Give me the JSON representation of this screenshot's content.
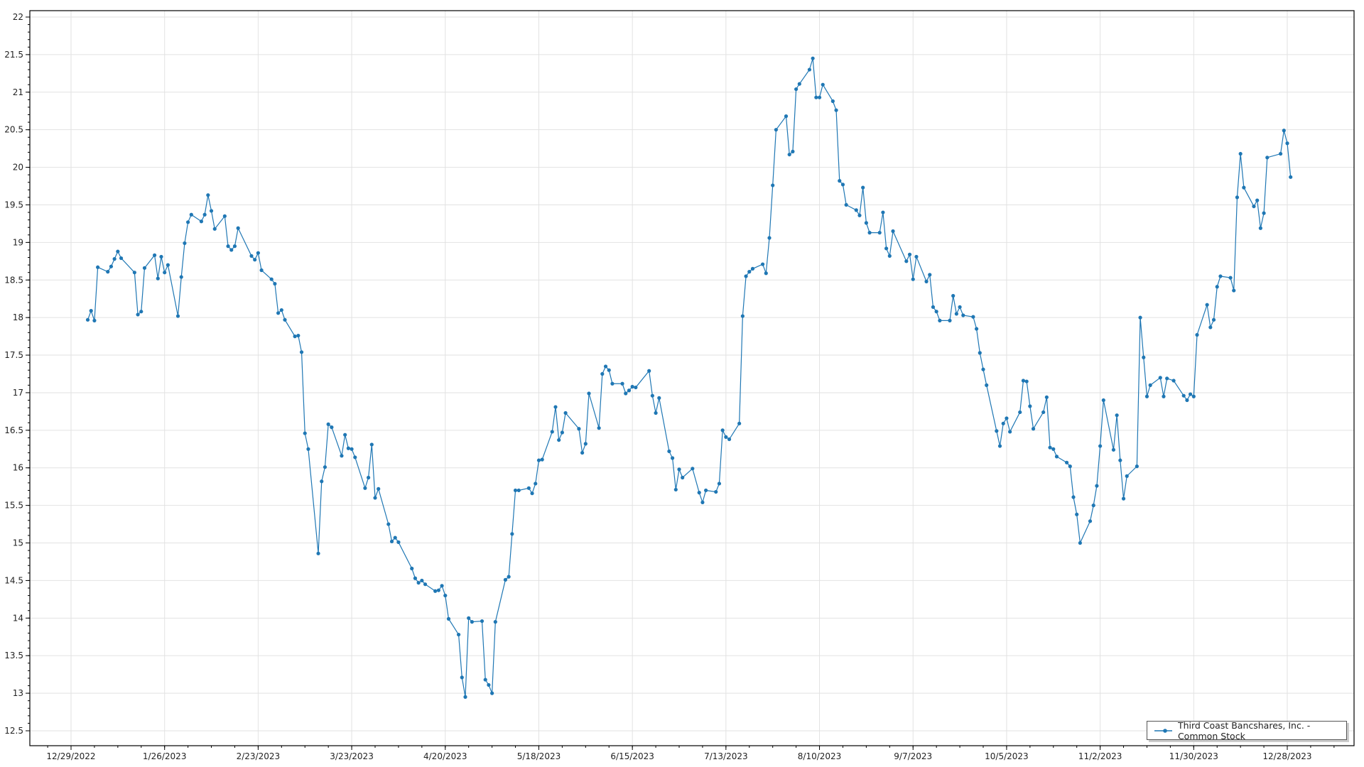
{
  "chart_data": {
    "type": "line",
    "title": "",
    "xlabel": "",
    "ylabel": "",
    "ylim": [
      12.5,
      22
    ],
    "yticks": [
      "12.5",
      "13",
      "13.5",
      "14",
      "14.5",
      "15",
      "15.5",
      "16",
      "16.5",
      "17",
      "17.5",
      "18",
      "18.5",
      "19",
      "19.5",
      "20",
      "20.5",
      "21",
      "21.5",
      "22"
    ],
    "xticks": [
      "12/29/2022",
      "1/26/2023",
      "2/23/2023",
      "3/23/2023",
      "4/20/2023",
      "5/18/2023",
      "6/15/2023",
      "7/13/2023",
      "8/10/2023",
      "9/7/2023",
      "10/5/2023",
      "11/2/2023",
      "11/30/2023",
      "12/28/2023"
    ],
    "grid": true,
    "legend_position": "bottom-right",
    "color": "#1f77b4",
    "series": [
      {
        "name": "Third Coast Bancshares, Inc. - Common Stock",
        "x": [
          "2023-01-03",
          "2023-01-04",
          "2023-01-05",
          "2023-01-06",
          "2023-01-09",
          "2023-01-10",
          "2023-01-11",
          "2023-01-12",
          "2023-01-13",
          "2023-01-17",
          "2023-01-18",
          "2023-01-19",
          "2023-01-20",
          "2023-01-23",
          "2023-01-24",
          "2023-01-25",
          "2023-01-26",
          "2023-01-27",
          "2023-01-30",
          "2023-01-31",
          "2023-02-01",
          "2023-02-02",
          "2023-02-03",
          "2023-02-06",
          "2023-02-07",
          "2023-02-08",
          "2023-02-09",
          "2023-02-10",
          "2023-02-13",
          "2023-02-14",
          "2023-02-15",
          "2023-02-16",
          "2023-02-17",
          "2023-02-21",
          "2023-02-22",
          "2023-02-23",
          "2023-02-24",
          "2023-02-27",
          "2023-02-28",
          "2023-03-01",
          "2023-03-02",
          "2023-03-03",
          "2023-03-06",
          "2023-03-07",
          "2023-03-08",
          "2023-03-09",
          "2023-03-10",
          "2023-03-13",
          "2023-03-14",
          "2023-03-15",
          "2023-03-16",
          "2023-03-17",
          "2023-03-20",
          "2023-03-21",
          "2023-03-22",
          "2023-03-23",
          "2023-03-24",
          "2023-03-27",
          "2023-03-28",
          "2023-03-29",
          "2023-03-30",
          "2023-03-31",
          "2023-04-03",
          "2023-04-04",
          "2023-04-05",
          "2023-04-06",
          "2023-04-10",
          "2023-04-11",
          "2023-04-12",
          "2023-04-13",
          "2023-04-14",
          "2023-04-17",
          "2023-04-18",
          "2023-04-19",
          "2023-04-20",
          "2023-04-21",
          "2023-04-24",
          "2023-04-25",
          "2023-04-26",
          "2023-04-27",
          "2023-04-28",
          "2023-05-01",
          "2023-05-02",
          "2023-05-03",
          "2023-05-04",
          "2023-05-05",
          "2023-05-08",
          "2023-05-09",
          "2023-05-10",
          "2023-05-11",
          "2023-05-12",
          "2023-05-15",
          "2023-05-16",
          "2023-05-17",
          "2023-05-18",
          "2023-05-19",
          "2023-05-22",
          "2023-05-23",
          "2023-05-24",
          "2023-05-25",
          "2023-05-26",
          "2023-05-30",
          "2023-05-31",
          "2023-06-01",
          "2023-06-02",
          "2023-06-05",
          "2023-06-06",
          "2023-06-07",
          "2023-06-08",
          "2023-06-09",
          "2023-06-12",
          "2023-06-13",
          "2023-06-14",
          "2023-06-15",
          "2023-06-16",
          "2023-06-20",
          "2023-06-21",
          "2023-06-22",
          "2023-06-23",
          "2023-06-26",
          "2023-06-27",
          "2023-06-28",
          "2023-06-29",
          "2023-06-30",
          "2023-07-03",
          "2023-07-05",
          "2023-07-06",
          "2023-07-07",
          "2023-07-10",
          "2023-07-11",
          "2023-07-12",
          "2023-07-13",
          "2023-07-14",
          "2023-07-17",
          "2023-07-18",
          "2023-07-19",
          "2023-07-20",
          "2023-07-21",
          "2023-07-24",
          "2023-07-25",
          "2023-07-26",
          "2023-07-27",
          "2023-07-28",
          "2023-07-31",
          "2023-08-01",
          "2023-08-02",
          "2023-08-03",
          "2023-08-04",
          "2023-08-07",
          "2023-08-08",
          "2023-08-09",
          "2023-08-10",
          "2023-08-11",
          "2023-08-14",
          "2023-08-15",
          "2023-08-16",
          "2023-08-17",
          "2023-08-18",
          "2023-08-21",
          "2023-08-22",
          "2023-08-23",
          "2023-08-24",
          "2023-08-25",
          "2023-08-28",
          "2023-08-29",
          "2023-08-30",
          "2023-08-31",
          "2023-09-01",
          "2023-09-05",
          "2023-09-06",
          "2023-09-07",
          "2023-09-08",
          "2023-09-11",
          "2023-09-12",
          "2023-09-13",
          "2023-09-14",
          "2023-09-15",
          "2023-09-18",
          "2023-09-19",
          "2023-09-20",
          "2023-09-21",
          "2023-09-22",
          "2023-09-25",
          "2023-09-26",
          "2023-09-27",
          "2023-09-28",
          "2023-09-29",
          "2023-10-02",
          "2023-10-03",
          "2023-10-04",
          "2023-10-05",
          "2023-10-06",
          "2023-10-09",
          "2023-10-10",
          "2023-10-11",
          "2023-10-12",
          "2023-10-13",
          "2023-10-16",
          "2023-10-17",
          "2023-10-18",
          "2023-10-19",
          "2023-10-20",
          "2023-10-23",
          "2023-10-24",
          "2023-10-25",
          "2023-10-26",
          "2023-10-27",
          "2023-10-30",
          "2023-10-31",
          "2023-11-01",
          "2023-11-02",
          "2023-11-03",
          "2023-11-06",
          "2023-11-07",
          "2023-11-08",
          "2023-11-09",
          "2023-11-10",
          "2023-11-13",
          "2023-11-14",
          "2023-11-15",
          "2023-11-16",
          "2023-11-17",
          "2023-11-20",
          "2023-11-21",
          "2023-11-22",
          "2023-11-24",
          "2023-11-27",
          "2023-11-28",
          "2023-11-29",
          "2023-11-30",
          "2023-12-01",
          "2023-12-04",
          "2023-12-05",
          "2023-12-06",
          "2023-12-07",
          "2023-12-08",
          "2023-12-11",
          "2023-12-12",
          "2023-12-13",
          "2023-12-14",
          "2023-12-15",
          "2023-12-18",
          "2023-12-19",
          "2023-12-20",
          "2023-12-21",
          "2023-12-22",
          "2023-12-26",
          "2023-12-27",
          "2023-12-28",
          "2023-12-29"
        ],
        "y": [
          17.97,
          18.09,
          17.96,
          18.67,
          18.61,
          18.68,
          18.78,
          18.88,
          18.79,
          18.6,
          18.04,
          18.08,
          18.66,
          18.83,
          18.52,
          18.81,
          18.6,
          18.7,
          18.02,
          18.54,
          18.99,
          19.27,
          19.37,
          19.28,
          19.37,
          19.63,
          19.42,
          19.18,
          19.35,
          18.95,
          18.9,
          18.95,
          19.19,
          18.82,
          18.77,
          18.86,
          18.63,
          18.51,
          18.45,
          18.06,
          18.1,
          17.97,
          17.75,
          17.76,
          17.54,
          16.46,
          16.25,
          14.86,
          15.82,
          16.01,
          16.58,
          16.54,
          16.16,
          16.44,
          16.26,
          16.25,
          16.14,
          15.73,
          15.87,
          16.31,
          15.6,
          15.72,
          15.25,
          15.02,
          15.07,
          15.01,
          14.66,
          14.53,
          14.47,
          14.5,
          14.45,
          14.36,
          14.37,
          14.43,
          14.3,
          13.99,
          13.78,
          13.21,
          12.95,
          14.0,
          13.95,
          13.96,
          13.18,
          13.11,
          13.0,
          13.95,
          14.51,
          14.55,
          15.12,
          15.7,
          15.7,
          15.73,
          15.66,
          15.79,
          16.1,
          16.11,
          16.48,
          16.81,
          16.37,
          16.47,
          16.73,
          16.52,
          16.2,
          16.32,
          16.99,
          16.53,
          17.25,
          17.35,
          17.3,
          17.12,
          17.12,
          16.99,
          17.03,
          17.08,
          17.07,
          17.29,
          16.96,
          16.73,
          16.93,
          16.22,
          16.13,
          15.71,
          15.98,
          15.87,
          15.99,
          15.67,
          15.54,
          15.7,
          15.68,
          15.79,
          16.5,
          16.41,
          16.38,
          16.59,
          18.02,
          18.55,
          18.61,
          18.65,
          18.71,
          18.59,
          19.06,
          19.76,
          20.5,
          20.68,
          20.17,
          20.21,
          21.04,
          21.11,
          21.3,
          21.45,
          20.93,
          20.93,
          21.1,
          20.88,
          20.76,
          19.82,
          19.77,
          19.5,
          19.43,
          19.36,
          19.73,
          19.26,
          19.13,
          19.13,
          19.4,
          18.92,
          18.82,
          19.15,
          18.75,
          18.84,
          18.51,
          18.81,
          18.48,
          18.57,
          18.14,
          18.08,
          17.96,
          17.96,
          18.29,
          18.05,
          18.14,
          18.03,
          18.01,
          17.85,
          17.53,
          17.31,
          17.1,
          16.49,
          16.29,
          16.59,
          16.66,
          16.48,
          16.74,
          17.16,
          17.15,
          16.82,
          16.52,
          16.74,
          16.94,
          16.27,
          16.25,
          16.15,
          16.07,
          16.02,
          15.61,
          15.38,
          15.0,
          15.29,
          15.5,
          15.76,
          16.29,
          16.9,
          16.24,
          16.7,
          16.1,
          15.59,
          15.89,
          16.02,
          18.0,
          17.47,
          16.95,
          17.1,
          17.2,
          16.95,
          17.19,
          17.16,
          16.96,
          16.9,
          16.98,
          16.95,
          17.77,
          18.17,
          17.87,
          17.97,
          18.41,
          18.55,
          18.53,
          18.36,
          19.6,
          20.18,
          19.73,
          19.48,
          19.56,
          19.19,
          19.39,
          20.13,
          20.18,
          20.49,
          20.32,
          19.87
        ]
      }
    ]
  }
}
